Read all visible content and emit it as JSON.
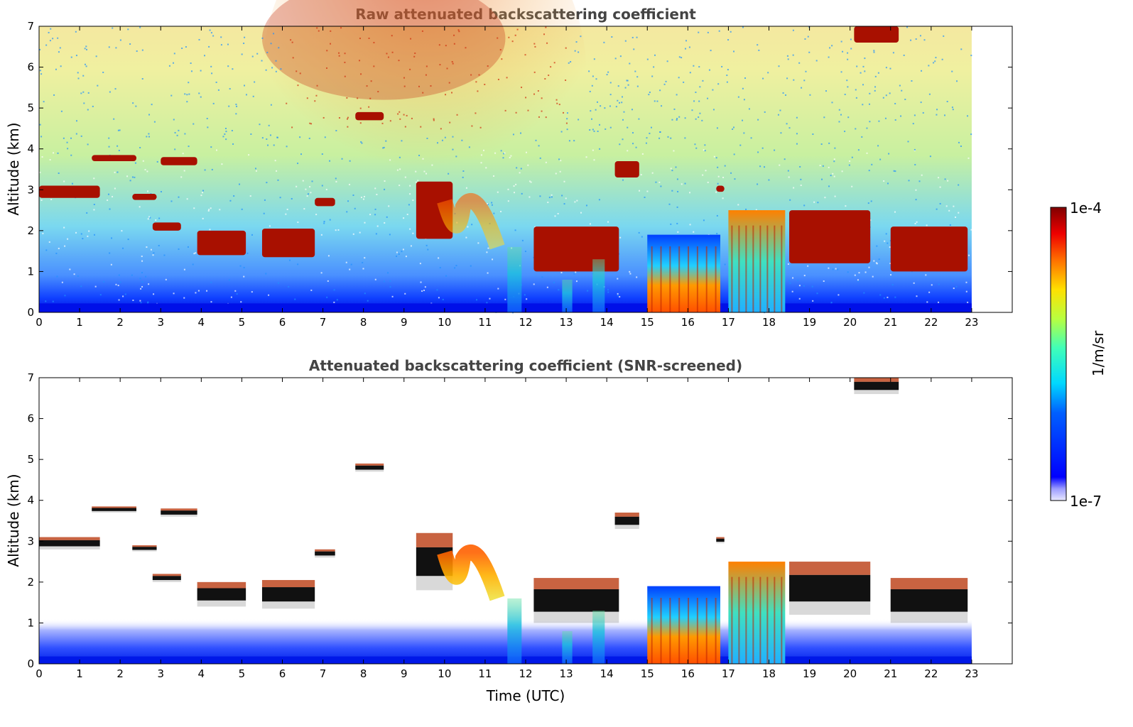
{
  "chart_data": [
    {
      "type": "heatmap",
      "title": "Raw attenuated backscattering coefficient",
      "xlabel": "",
      "ylabel": "Altitude (km)",
      "xlim": [
        0,
        24
      ],
      "ylim": [
        0,
        7
      ],
      "x_ticks": [
        "0",
        "1",
        "2",
        "3",
        "4",
        "5",
        "6",
        "7",
        "8",
        "9",
        "10",
        "11",
        "12",
        "13",
        "14",
        "15",
        "16",
        "17",
        "18",
        "19",
        "20",
        "21",
        "22",
        "23"
      ],
      "y_ticks": [
        "0",
        "1",
        "2",
        "3",
        "4",
        "5",
        "6",
        "7"
      ],
      "data_extent_hours": [
        0,
        23
      ],
      "grid": false,
      "features": [
        {
          "kind": "cloud",
          "x": [
            0.0,
            1.5
          ],
          "y": [
            2.8,
            3.1
          ]
        },
        {
          "kind": "cloud",
          "x": [
            1.3,
            2.4
          ],
          "y": [
            3.7,
            3.85
          ]
        },
        {
          "kind": "cloud",
          "x": [
            2.3,
            2.9
          ],
          "y": [
            2.75,
            2.9
          ]
        },
        {
          "kind": "cloud",
          "x": [
            3.0,
            3.9
          ],
          "y": [
            3.6,
            3.8
          ]
        },
        {
          "kind": "cloud",
          "x": [
            2.8,
            3.5
          ],
          "y": [
            2.0,
            2.2
          ]
        },
        {
          "kind": "cloud",
          "x": [
            3.9,
            5.1
          ],
          "y": [
            1.4,
            2.0
          ]
        },
        {
          "kind": "cloud",
          "x": [
            5.5,
            6.8
          ],
          "y": [
            1.35,
            2.05
          ]
        },
        {
          "kind": "cloud",
          "x": [
            6.8,
            7.3
          ],
          "y": [
            2.6,
            2.8
          ]
        },
        {
          "kind": "cloud",
          "x": [
            7.8,
            8.5
          ],
          "y": [
            4.7,
            4.9
          ]
        },
        {
          "kind": "cloud",
          "x": [
            9.3,
            10.2
          ],
          "y": [
            1.8,
            3.2
          ]
        },
        {
          "kind": "aerosol",
          "x": [
            10.0,
            11.3
          ],
          "y": [
            1.6,
            3.0
          ]
        },
        {
          "kind": "cloud",
          "x": [
            12.2,
            14.3
          ],
          "y": [
            1.0,
            2.1
          ]
        },
        {
          "kind": "cloud",
          "x": [
            14.2,
            14.8
          ],
          "y": [
            3.3,
            3.7
          ]
        },
        {
          "kind": "precip",
          "x": [
            15.0,
            16.8
          ],
          "y": [
            0.0,
            1.9
          ]
        },
        {
          "kind": "cloud",
          "x": [
            16.7,
            16.9
          ],
          "y": [
            2.95,
            3.1
          ]
        },
        {
          "kind": "precip",
          "x": [
            17.0,
            18.4
          ],
          "y": [
            0.0,
            2.5
          ]
        },
        {
          "kind": "cloud",
          "x": [
            18.5,
            20.5
          ],
          "y": [
            1.2,
            2.5
          ]
        },
        {
          "kind": "cloud",
          "x": [
            21.0,
            22.9
          ],
          "y": [
            1.0,
            2.1
          ]
        },
        {
          "kind": "cloud",
          "x": [
            20.1,
            21.2
          ],
          "y": [
            6.6,
            7.0
          ]
        }
      ]
    },
    {
      "type": "heatmap",
      "title": "Attenuated backscattering coefficient (SNR-screened)",
      "xlabel": "Time (UTC)",
      "ylabel": "Altitude (km)",
      "xlim": [
        0,
        24
      ],
      "ylim": [
        0,
        7
      ],
      "x_ticks": [
        "0",
        "1",
        "2",
        "3",
        "4",
        "5",
        "6",
        "7",
        "8",
        "9",
        "10",
        "11",
        "12",
        "13",
        "14",
        "15",
        "16",
        "17",
        "18",
        "19",
        "20",
        "21",
        "22",
        "23"
      ],
      "y_ticks": [
        "0",
        "1",
        "2",
        "3",
        "4",
        "5",
        "6",
        "7"
      ],
      "data_extent_hours": [
        0,
        23
      ],
      "grid": false
    }
  ],
  "colorbar": {
    "label": "1/m/sr",
    "max_label": "1e-4",
    "min_label": "1e-7",
    "colormap": "jet",
    "min_color": "#e8e8ff",
    "max_color": "#800000"
  }
}
